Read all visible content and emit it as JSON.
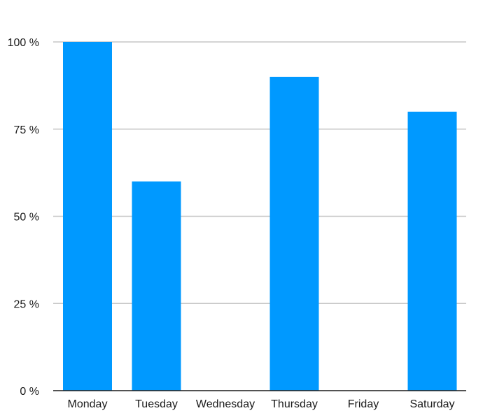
{
  "chart_data": {
    "type": "bar",
    "categories": [
      "Monday",
      "Tuesday",
      "Wednesday",
      "Thursday",
      "Friday",
      "Saturday"
    ],
    "values": [
      100,
      60,
      0,
      90,
      0,
      80
    ],
    "unit": "%",
    "ylim": [
      0,
      100
    ],
    "yticks": [
      0,
      25,
      50,
      75,
      100
    ],
    "ytick_labels": [
      "0 %",
      "25 %",
      "50 %",
      "75 %",
      "100 %"
    ],
    "title": "",
    "xlabel": "",
    "ylabel": "",
    "grid": "horizontal",
    "legend": "none",
    "bar_color": "#0099ff"
  }
}
